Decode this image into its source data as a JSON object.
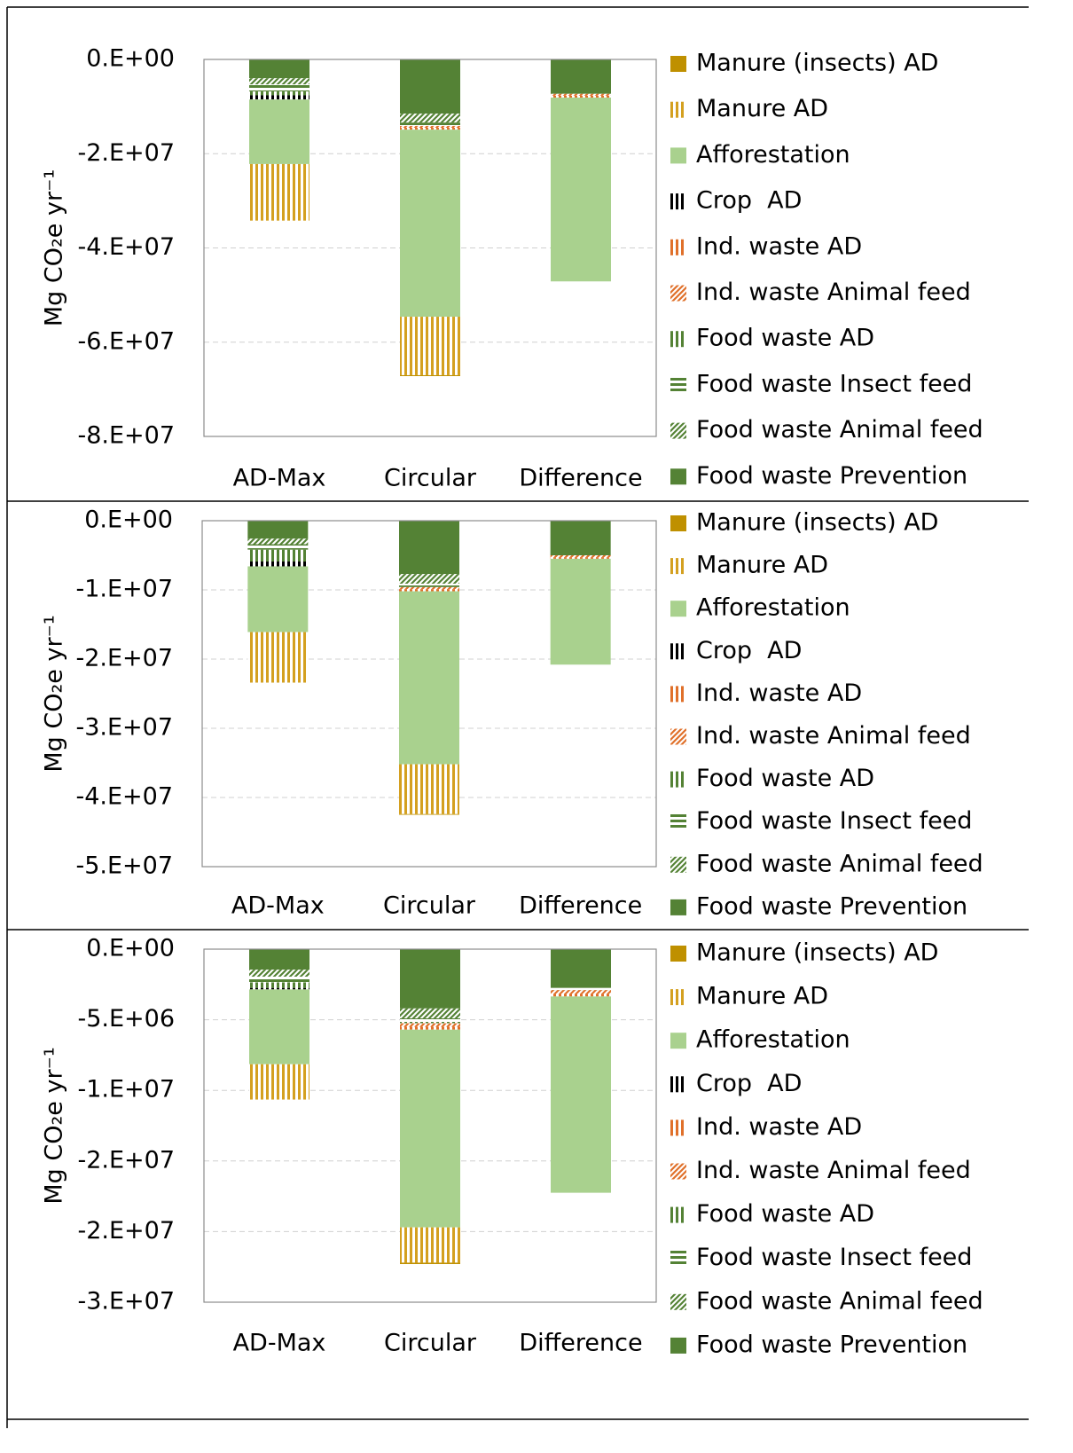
{
  "chart_data": [
    {
      "type": "bar",
      "stacked": true,
      "ylabel": "Mg CO₂e yr⁻¹",
      "grid": true,
      "legend": "right",
      "categories": [
        "AD-Max",
        "Circular",
        "Difference"
      ],
      "ylim": [
        -80000000,
        0
      ],
      "yticks": [
        {
          "value": 0,
          "label": "0.E+00"
        },
        {
          "value": -20000000,
          "label": "-2.E+07"
        },
        {
          "value": -40000000,
          "label": "-4.E+07"
        },
        {
          "value": -60000000,
          "label": "-6.E+07"
        },
        {
          "value": -80000000,
          "label": "-8.E+07"
        }
      ],
      "series": [
        {
          "name": "Manure (insects) AD",
          "color": "#bf9000",
          "pattern": "solid",
          "values": [
            0,
            -200000,
            0
          ]
        },
        {
          "name": "Manure AD",
          "color": "#d4a020",
          "pattern": "vertical",
          "values": [
            -12000000,
            -12400000,
            0
          ]
        },
        {
          "name": "Afforestation",
          "color": "#a9d18e",
          "pattern": "solid",
          "values": [
            -13700000,
            -39700000,
            -39000000
          ]
        },
        {
          "name": "Crop  AD",
          "color": "#000000",
          "pattern": "vertical",
          "values": [
            -900000,
            0,
            0
          ]
        },
        {
          "name": "Ind. waste AD",
          "color": "#e0702a",
          "pattern": "vertical",
          "values": [
            0,
            -400000,
            -400000
          ]
        },
        {
          "name": "Ind. waste Animal feed",
          "color": "#e0702a",
          "pattern": "diagonal",
          "values": [
            0,
            -400000,
            -400000
          ]
        },
        {
          "name": "Food waste AD",
          "color": "#548235",
          "pattern": "vertical",
          "values": [
            -800000,
            0,
            0
          ]
        },
        {
          "name": "Food waste Insect feed",
          "color": "#548235",
          "pattern": "horizontal",
          "values": [
            -1500000,
            -700000,
            0
          ]
        },
        {
          "name": "Food waste Animal feed",
          "color": "#548235",
          "pattern": "diagonal",
          "values": [
            -1300000,
            -1900000,
            0
          ]
        },
        {
          "name": "Food waste Prevention",
          "color": "#548235",
          "pattern": "solid",
          "values": [
            -4000000,
            -11500000,
            -7300000
          ]
        }
      ]
    },
    {
      "type": "bar",
      "stacked": true,
      "ylabel": "Mg CO₂e yr⁻¹",
      "grid": true,
      "legend": "right",
      "categories": [
        "AD-Max",
        "Circular",
        "Difference"
      ],
      "ylim": [
        -50000000,
        0
      ],
      "yticks": [
        {
          "value": 0,
          "label": "0.E+00"
        },
        {
          "value": -10000000,
          "label": "-1.E+07"
        },
        {
          "value": -20000000,
          "label": "-2.E+07"
        },
        {
          "value": -30000000,
          "label": "-3.E+07"
        },
        {
          "value": -40000000,
          "label": "-4.E+07"
        },
        {
          "value": -50000000,
          "label": "-5.E+07"
        }
      ],
      "series": [
        {
          "name": "Manure (insects) AD",
          "color": "#bf9000",
          "pattern": "solid",
          "values": [
            0,
            -100000,
            0
          ]
        },
        {
          "name": "Manure AD",
          "color": "#d4a020",
          "pattern": "vertical",
          "values": [
            -7300000,
            -7200000,
            0
          ]
        },
        {
          "name": "Afforestation",
          "color": "#a9d18e",
          "pattern": "solid",
          "values": [
            -9500000,
            -25000000,
            -15300000
          ]
        },
        {
          "name": "Crop  AD",
          "color": "#000000",
          "pattern": "vertical",
          "values": [
            -700000,
            0,
            0
          ]
        },
        {
          "name": "Ind. waste AD",
          "color": "#e0702a",
          "pattern": "vertical",
          "values": [
            0,
            -300000,
            -200000
          ]
        },
        {
          "name": "Ind. waste Animal feed",
          "color": "#e0702a",
          "pattern": "diagonal",
          "values": [
            0,
            -300000,
            -300000
          ]
        },
        {
          "name": "Food waste AD",
          "color": "#548235",
          "pattern": "vertical",
          "values": [
            -1700000,
            0,
            0
          ]
        },
        {
          "name": "Food waste Insect feed",
          "color": "#548235",
          "pattern": "horizontal",
          "values": [
            -800000,
            -500000,
            0
          ]
        },
        {
          "name": "Food waste Animal feed",
          "color": "#548235",
          "pattern": "diagonal",
          "values": [
            -800000,
            -1400000,
            0
          ]
        },
        {
          "name": "Food waste Prevention",
          "color": "#548235",
          "pattern": "solid",
          "values": [
            -2600000,
            -7700000,
            -5000000
          ]
        }
      ]
    },
    {
      "type": "bar",
      "stacked": true,
      "ylabel": "Mg CO₂e yr⁻¹",
      "grid": true,
      "legend": "right",
      "categories": [
        "AD-Max",
        "Circular",
        "Difference"
      ],
      "ylim": [
        -25000000,
        0
      ],
      "yticks": [
        {
          "value": 0,
          "label": "0.E+00"
        },
        {
          "value": -5000000,
          "label": "-5.E+06"
        },
        {
          "value": -10000000,
          "label": "-1.E+07"
        },
        {
          "value": -15000000,
          "label": "-2.E+07"
        },
        {
          "value": -20000000,
          "label": "-2.E+07"
        },
        {
          "value": -25000000,
          "label": "-3.E+07"
        }
      ],
      "series": [
        {
          "name": "Manure (insects) AD",
          "color": "#bf9000",
          "pattern": "solid",
          "values": [
            0,
            -100000,
            0
          ]
        },
        {
          "name": "Manure AD",
          "color": "#d4a020",
          "pattern": "vertical",
          "values": [
            -2500000,
            -2500000,
            0
          ]
        },
        {
          "name": "Afforestation",
          "color": "#a9d18e",
          "pattern": "solid",
          "values": [
            -5300000,
            -14000000,
            -13900000
          ]
        },
        {
          "name": "Crop  AD",
          "color": "#000000",
          "pattern": "vertical",
          "values": [
            -100000,
            0,
            0
          ]
        },
        {
          "name": "Ind. waste AD",
          "color": "#e0702a",
          "pattern": "vertical",
          "values": [
            0,
            -200000,
            -200000
          ]
        },
        {
          "name": "Ind. waste Animal feed",
          "color": "#e0702a",
          "pattern": "diagonal",
          "values": [
            0,
            -250000,
            -250000
          ]
        },
        {
          "name": "Food waste AD",
          "color": "#548235",
          "pattern": "vertical",
          "values": [
            -400000,
            -100000,
            0
          ]
        },
        {
          "name": "Food waste Insect feed",
          "color": "#548235",
          "pattern": "horizontal",
          "values": [
            -400000,
            -250000,
            -150000
          ]
        },
        {
          "name": "Food waste Animal feed",
          "color": "#548235",
          "pattern": "diagonal",
          "values": [
            -500000,
            -700000,
            0
          ]
        },
        {
          "name": "Food waste Prevention",
          "color": "#548235",
          "pattern": "solid",
          "values": [
            -1450000,
            -4200000,
            -2750000
          ]
        }
      ]
    }
  ]
}
